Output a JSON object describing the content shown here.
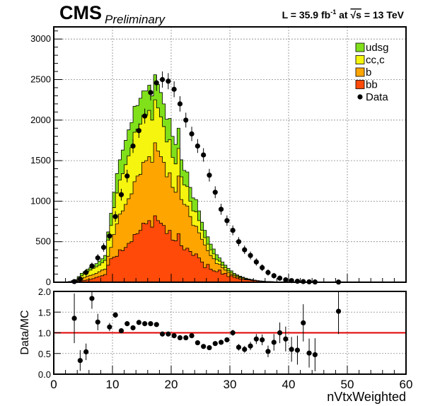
{
  "header": {
    "experiment": "CMS",
    "status": "Preliminary",
    "lumi_text": "L = 35.9 fb",
    "lumi_sup": "-1",
    "energy_pre": " at  ",
    "energy_sqrt": "√s",
    "energy_post": " = 13 TeV"
  },
  "colors": {
    "udsg": "#80e01a",
    "cc_c": "#f5f50f",
    "b": "#ffa500",
    "bb": "#ff4a0a",
    "data": "#000000",
    "ratio_line": "#e00000"
  },
  "chart_data": [
    {
      "type": "area",
      "subtype": "stacked-histogram",
      "xlim": [
        0,
        60
      ],
      "ylim": [
        0,
        3150
      ],
      "grid": true,
      "legend_position": "top-right",
      "y_ticks": [
        "0",
        "500",
        "1000",
        "1500",
        "2000",
        "2500",
        "3000"
      ],
      "bin_width": 0.5,
      "bins_x_start": 1.0,
      "series": [
        {
          "name": "bb",
          "color_key": "bb",
          "values": [
            0,
            0,
            2,
            3,
            5,
            8,
            12,
            18,
            22,
            28,
            35,
            45,
            60,
            70,
            80,
            95,
            210,
            290,
            310,
            320,
            400,
            390,
            430,
            480,
            500,
            590,
            600,
            640,
            730,
            720,
            760,
            680,
            820,
            760,
            730,
            700,
            600,
            640,
            520,
            510,
            600,
            450,
            400,
            420,
            380,
            330,
            350,
            300,
            250,
            180,
            220,
            160,
            140,
            130,
            150,
            100,
            110,
            70,
            80,
            60,
            50,
            40,
            35,
            30,
            28,
            22,
            20,
            15,
            12,
            10,
            8,
            6,
            5,
            4,
            3,
            3,
            2,
            2,
            1,
            1
          ]
        },
        {
          "name": "b",
          "color_key": "b",
          "values": [
            0,
            0,
            3,
            5,
            10,
            14,
            25,
            40,
            60,
            75,
            85,
            95,
            110,
            130,
            150,
            160,
            320,
            430,
            590,
            720,
            840,
            880,
            960,
            1030,
            1090,
            1240,
            1310,
            1330,
            1480,
            1500,
            1550,
            1480,
            1720,
            1620,
            1550,
            1480,
            1300,
            1350,
            1170,
            1110,
            1310,
            1020,
            960,
            940,
            810,
            700,
            690,
            610,
            530,
            460,
            390,
            330,
            290,
            230,
            220,
            180,
            150,
            120,
            100,
            80,
            65,
            55,
            45,
            35,
            28,
            22,
            18,
            15,
            12,
            10,
            8,
            6,
            5,
            4,
            3,
            3,
            2,
            2,
            1,
            1
          ]
        },
        {
          "name": "cc,c",
          "color_key": "cc_c",
          "values": [
            0,
            0,
            4,
            8,
            15,
            20,
            50,
            80,
            100,
            130,
            150,
            170,
            190,
            210,
            240,
            270,
            520,
            700,
            920,
            1100,
            1260,
            1340,
            1450,
            1560,
            1660,
            1850,
            1890,
            1950,
            2060,
            2060,
            2120,
            2000,
            2250,
            2150,
            2040,
            1920,
            1730,
            1760,
            1540,
            1460,
            1650,
            1300,
            1200,
            1180,
            1000,
            880,
            870,
            760,
            640,
            550,
            470,
            400,
            350,
            280,
            260,
            210,
            180,
            140,
            120,
            95,
            80,
            65,
            55,
            42,
            35,
            28,
            22,
            18,
            14,
            12,
            10,
            8,
            6,
            5,
            4,
            3,
            3,
            2,
            1,
            1
          ]
        },
        {
          "name": "udsg",
          "color_key": "udsg",
          "values": [
            0,
            0,
            5,
            10,
            20,
            30,
            70,
            110,
            130,
            160,
            180,
            200,
            230,
            260,
            290,
            330,
            620,
            850,
            1110,
            1340,
            1510,
            1630,
            1750,
            1880,
            1970,
            2170,
            2180,
            2270,
            2360,
            2360,
            2430,
            2300,
            2560,
            2440,
            2340,
            2200,
            2010,
            2020,
            1800,
            1700,
            1900,
            1510,
            1380,
            1360,
            1170,
            1040,
            1020,
            880,
            740,
            640,
            560,
            470,
            410,
            340,
            300,
            250,
            210,
            170,
            140,
            110,
            90,
            75,
            62,
            50,
            40,
            32,
            26,
            20,
            16,
            13,
            10,
            8,
            7,
            5,
            4,
            3,
            3,
            2,
            1,
            1
          ]
        }
      ],
      "data_points": {
        "name": "Data",
        "x": [
          3.5,
          4.5,
          5.5,
          6.5,
          7.5,
          8.5,
          9.5,
          10.5,
          11.5,
          12.5,
          13.5,
          14.5,
          15.5,
          16.5,
          17.5,
          18.5,
          19.5,
          20.5,
          21.5,
          22.5,
          23.5,
          24.5,
          25.5,
          26.5,
          27.5,
          28.5,
          29.5,
          30.5,
          31.5,
          32.5,
          33.5,
          34.5,
          35.5,
          36.5,
          37.5,
          38.5,
          39.5,
          40.5,
          41.5,
          42.5,
          43.5,
          44.5,
          48.5
        ],
        "y": [
          8,
          40,
          120,
          200,
          300,
          430,
          570,
          810,
          1080,
          1310,
          1680,
          1870,
          2050,
          2340,
          2460,
          2500,
          2480,
          2380,
          2200,
          2000,
          1830,
          1680,
          1570,
          1320,
          1110,
          900,
          760,
          640,
          500,
          400,
          330,
          250,
          180,
          120,
          80,
          50,
          30,
          20,
          12,
          8,
          5,
          3,
          2
        ]
      }
    },
    {
      "type": "scatter",
      "subtype": "ratio",
      "xlim": [
        0,
        60
      ],
      "ylim": [
        0,
        2.0
      ],
      "grid": true,
      "xlabel": "nVtxWeighted",
      "ylabel": "Data/MC",
      "x_ticks": [
        "0",
        "10",
        "20",
        "30",
        "40",
        "50",
        "60"
      ],
      "y_ticks": [
        "0.0",
        "0.5",
        "1.0",
        "1.5",
        "2.0"
      ],
      "reference_line": 1.0,
      "points": {
        "x": [
          3.5,
          4.5,
          5.5,
          6.5,
          7.5,
          9.5,
          10.5,
          11.5,
          12.5,
          13.5,
          14.5,
          15.5,
          16.5,
          17.5,
          18.5,
          19.5,
          20.5,
          21.5,
          22.5,
          23.5,
          24.5,
          25.5,
          26.5,
          27.5,
          28.5,
          29.5,
          30.5,
          31.5,
          32.5,
          33.5,
          34.5,
          35.5,
          36.5,
          37.5,
          38.5,
          39.5,
          40.5,
          41.5,
          42.5,
          43.5,
          44.5,
          48.5
        ],
        "y": [
          1.35,
          0.33,
          0.54,
          1.83,
          1.26,
          1.14,
          1.43,
          1.05,
          1.22,
          1.12,
          1.25,
          1.22,
          1.22,
          1.2,
          0.97,
          0.97,
          0.93,
          0.88,
          0.88,
          0.93,
          0.76,
          0.67,
          0.64,
          0.74,
          0.77,
          0.83,
          1.0,
          0.65,
          0.6,
          0.68,
          0.85,
          0.83,
          0.55,
          0.77,
          1.0,
          0.85,
          0.6,
          0.58,
          1.24,
          0.51,
          0.47,
          1.52
        ],
        "err": [
          0.6,
          0.25,
          0.2,
          0.25,
          0.2,
          0.1,
          0.07,
          0.05,
          0.05,
          0.04,
          0.04,
          0.04,
          0.03,
          0.03,
          0.03,
          0.03,
          0.03,
          0.03,
          0.03,
          0.04,
          0.04,
          0.04,
          0.05,
          0.05,
          0.05,
          0.06,
          0.07,
          0.08,
          0.08,
          0.1,
          0.12,
          0.13,
          0.14,
          0.2,
          0.25,
          0.3,
          0.3,
          0.35,
          0.45,
          0.35,
          0.4,
          0.55
        ]
      }
    }
  ],
  "legend": {
    "items": [
      {
        "label": "udsg",
        "color_key": "udsg"
      },
      {
        "label": "cc,c",
        "color_key": "cc_c"
      },
      {
        "label": "b",
        "color_key": "b"
      },
      {
        "label": "bb",
        "color_key": "bb"
      },
      {
        "label": "Data",
        "color_key": "data",
        "marker": "dot"
      }
    ]
  }
}
